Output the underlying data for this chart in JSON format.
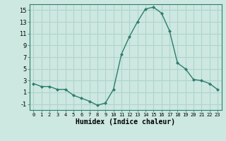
{
  "x": [
    0,
    1,
    2,
    3,
    4,
    5,
    6,
    7,
    8,
    9,
    10,
    11,
    12,
    13,
    14,
    15,
    16,
    17,
    18,
    19,
    20,
    21,
    22,
    23
  ],
  "y": [
    2.5,
    2.0,
    2.0,
    1.5,
    1.5,
    0.5,
    0.0,
    -0.5,
    -1.2,
    -0.8,
    1.5,
    7.5,
    10.5,
    13.0,
    15.2,
    15.5,
    14.5,
    11.5,
    6.0,
    5.0,
    3.2,
    3.0,
    2.5,
    1.5
  ],
  "line_color": "#2e7d6e",
  "marker": "D",
  "marker_size": 2,
  "bg_color": "#cce8e0",
  "grid_color": "#b0d4cc",
  "xlabel": "Humidex (Indice chaleur)",
  "xlabel_fontsize": 7,
  "ylim": [
    -2,
    16
  ],
  "yticks": [
    -1,
    1,
    3,
    5,
    7,
    9,
    11,
    13,
    15
  ],
  "xticks": [
    0,
    1,
    2,
    3,
    4,
    5,
    6,
    7,
    8,
    9,
    10,
    11,
    12,
    13,
    14,
    15,
    16,
    17,
    18,
    19,
    20,
    21,
    22,
    23
  ],
  "xlim": [
    -0.5,
    23.5
  ]
}
